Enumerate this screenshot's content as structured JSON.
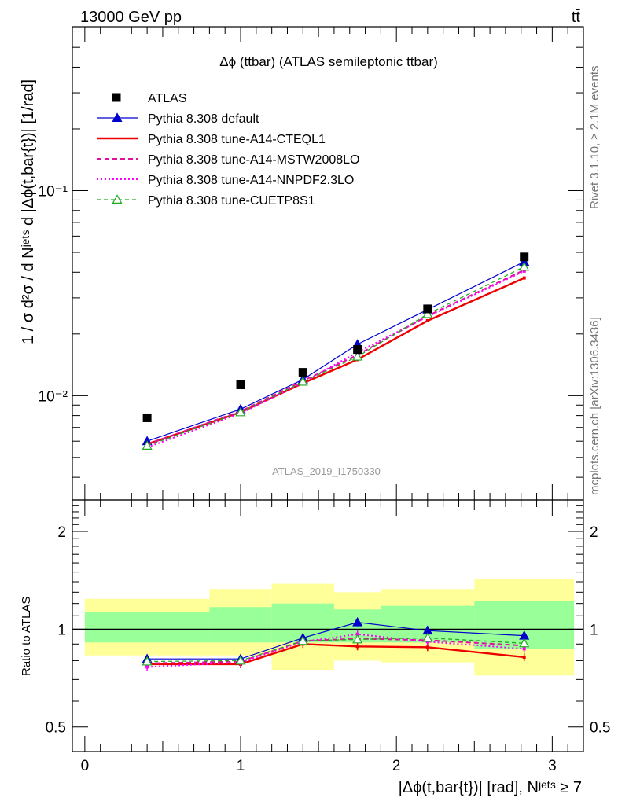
{
  "header": {
    "energy_label": "13000 GeV pp",
    "process_label": "tt̄",
    "plot_title": "Δϕ (ttbar) (ATLAS semileptonic ttbar)",
    "analysis_id": "ATLAS_2019_I1750330",
    "side_rivet": "Rivet 3.1.10, ≥ 2.1M events",
    "side_mcplots": "mcplots.cern.ch [arXiv:1306.3436]"
  },
  "axes": {
    "ylabel_main": "1 / σ d²σ / d Nʲᵉᵗˢ d |Δϕ(t,bar{t})| [1/rad]",
    "ylabel_ratio": "Ratio to ATLAS",
    "xlabel": "|Δϕ(t,bar{t})| [rad], Nʲᵉᵗˢ ≥ 7",
    "main_tick_labels": {
      "1e-1": "10⁻¹",
      "1e-2": "10⁻²"
    },
    "ratio_tick_labels": [
      "2",
      "1",
      "0.5"
    ],
    "x_tick_labels": [
      "0",
      "1",
      "2",
      "3"
    ]
  },
  "colors": {
    "atlas": "#000000",
    "default": "#0000cc",
    "cteql1": "#ee0000",
    "mstw": "#e0119c",
    "nnpdf": "#ff00ff",
    "cuetp": "#22aa22",
    "band_yellow": "#ffff99",
    "band_green": "#99ff99"
  },
  "chart_data": [
    {
      "type": "scatter",
      "panel": "main",
      "ylog": true,
      "xlim": [
        -0.08,
        3.2
      ],
      "ylim": [
        0.0031,
        0.63
      ],
      "x": [
        0.4,
        1.0,
        1.4,
        1.75,
        2.2,
        2.82
      ],
      "xbins": [
        [
          0.0,
          0.8
        ],
        [
          0.8,
          1.2
        ],
        [
          1.2,
          1.6
        ],
        [
          1.6,
          1.9
        ],
        [
          1.9,
          2.5
        ],
        [
          2.5,
          3.14
        ]
      ],
      "legend_position": "top-left",
      "series": [
        {
          "name": "ATLAS",
          "key": "atlas",
          "style": "data",
          "values": [
            0.0078,
            0.0113,
            0.013,
            0.0168,
            0.0265,
            0.0475
          ]
        },
        {
          "name": "Pythia 8.308 default",
          "key": "default",
          "style": "solid-thin",
          "marker": "triangle",
          "values": [
            0.006,
            0.0086,
            0.012,
            0.0178,
            0.0263,
            0.045
          ]
        },
        {
          "name": "Pythia 8.308 tune-A14-CTEQL1",
          "key": "cteql1",
          "style": "solid-thick",
          "values": [
            0.0058,
            0.0083,
            0.0115,
            0.015,
            0.0232,
            0.0375
          ]
        },
        {
          "name": "Pythia 8.308 tune-A14-MSTW2008LO",
          "key": "mstw",
          "style": "dashed",
          "values": [
            0.0058,
            0.0084,
            0.0118,
            0.0158,
            0.0245,
            0.041
          ]
        },
        {
          "name": "Pythia 8.308 tune-A14-NNPDF2.3LO",
          "key": "nnpdf",
          "style": "dotted",
          "values": [
            0.0056,
            0.0082,
            0.0116,
            0.0163,
            0.0243,
            0.0405
          ]
        },
        {
          "name": "Pythia 8.308 tune-CUETP8S1",
          "key": "cuetp",
          "style": "dashed-open-triangle",
          "marker": "open-triangle",
          "values": [
            0.0057,
            0.0083,
            0.0117,
            0.0155,
            0.025,
            0.0425
          ]
        }
      ]
    },
    {
      "type": "line",
      "panel": "ratio",
      "ylog": true,
      "xlim": [
        -0.08,
        3.2
      ],
      "ylim": [
        0.42,
        2.5
      ],
      "x": [
        0.4,
        1.0,
        1.4,
        1.75,
        2.2,
        2.82
      ],
      "bands": {
        "xbins": [
          [
            0.0,
            0.8
          ],
          [
            0.8,
            1.2
          ],
          [
            1.2,
            1.6
          ],
          [
            1.6,
            1.9
          ],
          [
            1.9,
            2.5
          ],
          [
            2.5,
            3.14
          ]
        ],
        "yellow": [
          [
            0.83,
            1.24
          ],
          [
            0.83,
            1.33
          ],
          [
            0.75,
            1.38
          ],
          [
            0.8,
            1.3
          ],
          [
            0.79,
            1.33
          ],
          [
            0.72,
            1.43
          ]
        ],
        "green": [
          [
            0.91,
            1.13
          ],
          [
            0.91,
            1.17
          ],
          [
            0.91,
            1.2
          ],
          [
            0.91,
            1.15
          ],
          [
            0.91,
            1.18
          ],
          [
            0.87,
            1.22
          ]
        ]
      },
      "reference_line": 1.0,
      "series": [
        {
          "key": "default",
          "values": [
            0.81,
            0.81,
            0.94,
            1.05,
            0.99,
            0.955
          ]
        },
        {
          "key": "cteql1",
          "values": [
            0.78,
            0.78,
            0.9,
            0.885,
            0.88,
            0.82
          ]
        },
        {
          "key": "mstw",
          "values": [
            0.785,
            0.795,
            0.92,
            0.935,
            0.925,
            0.89
          ]
        },
        {
          "key": "nnpdf",
          "values": [
            0.765,
            0.79,
            0.915,
            0.965,
            0.915,
            0.87
          ]
        },
        {
          "key": "cuetp",
          "values": [
            0.795,
            0.8,
            0.92,
            0.93,
            0.94,
            0.905
          ]
        }
      ]
    }
  ]
}
